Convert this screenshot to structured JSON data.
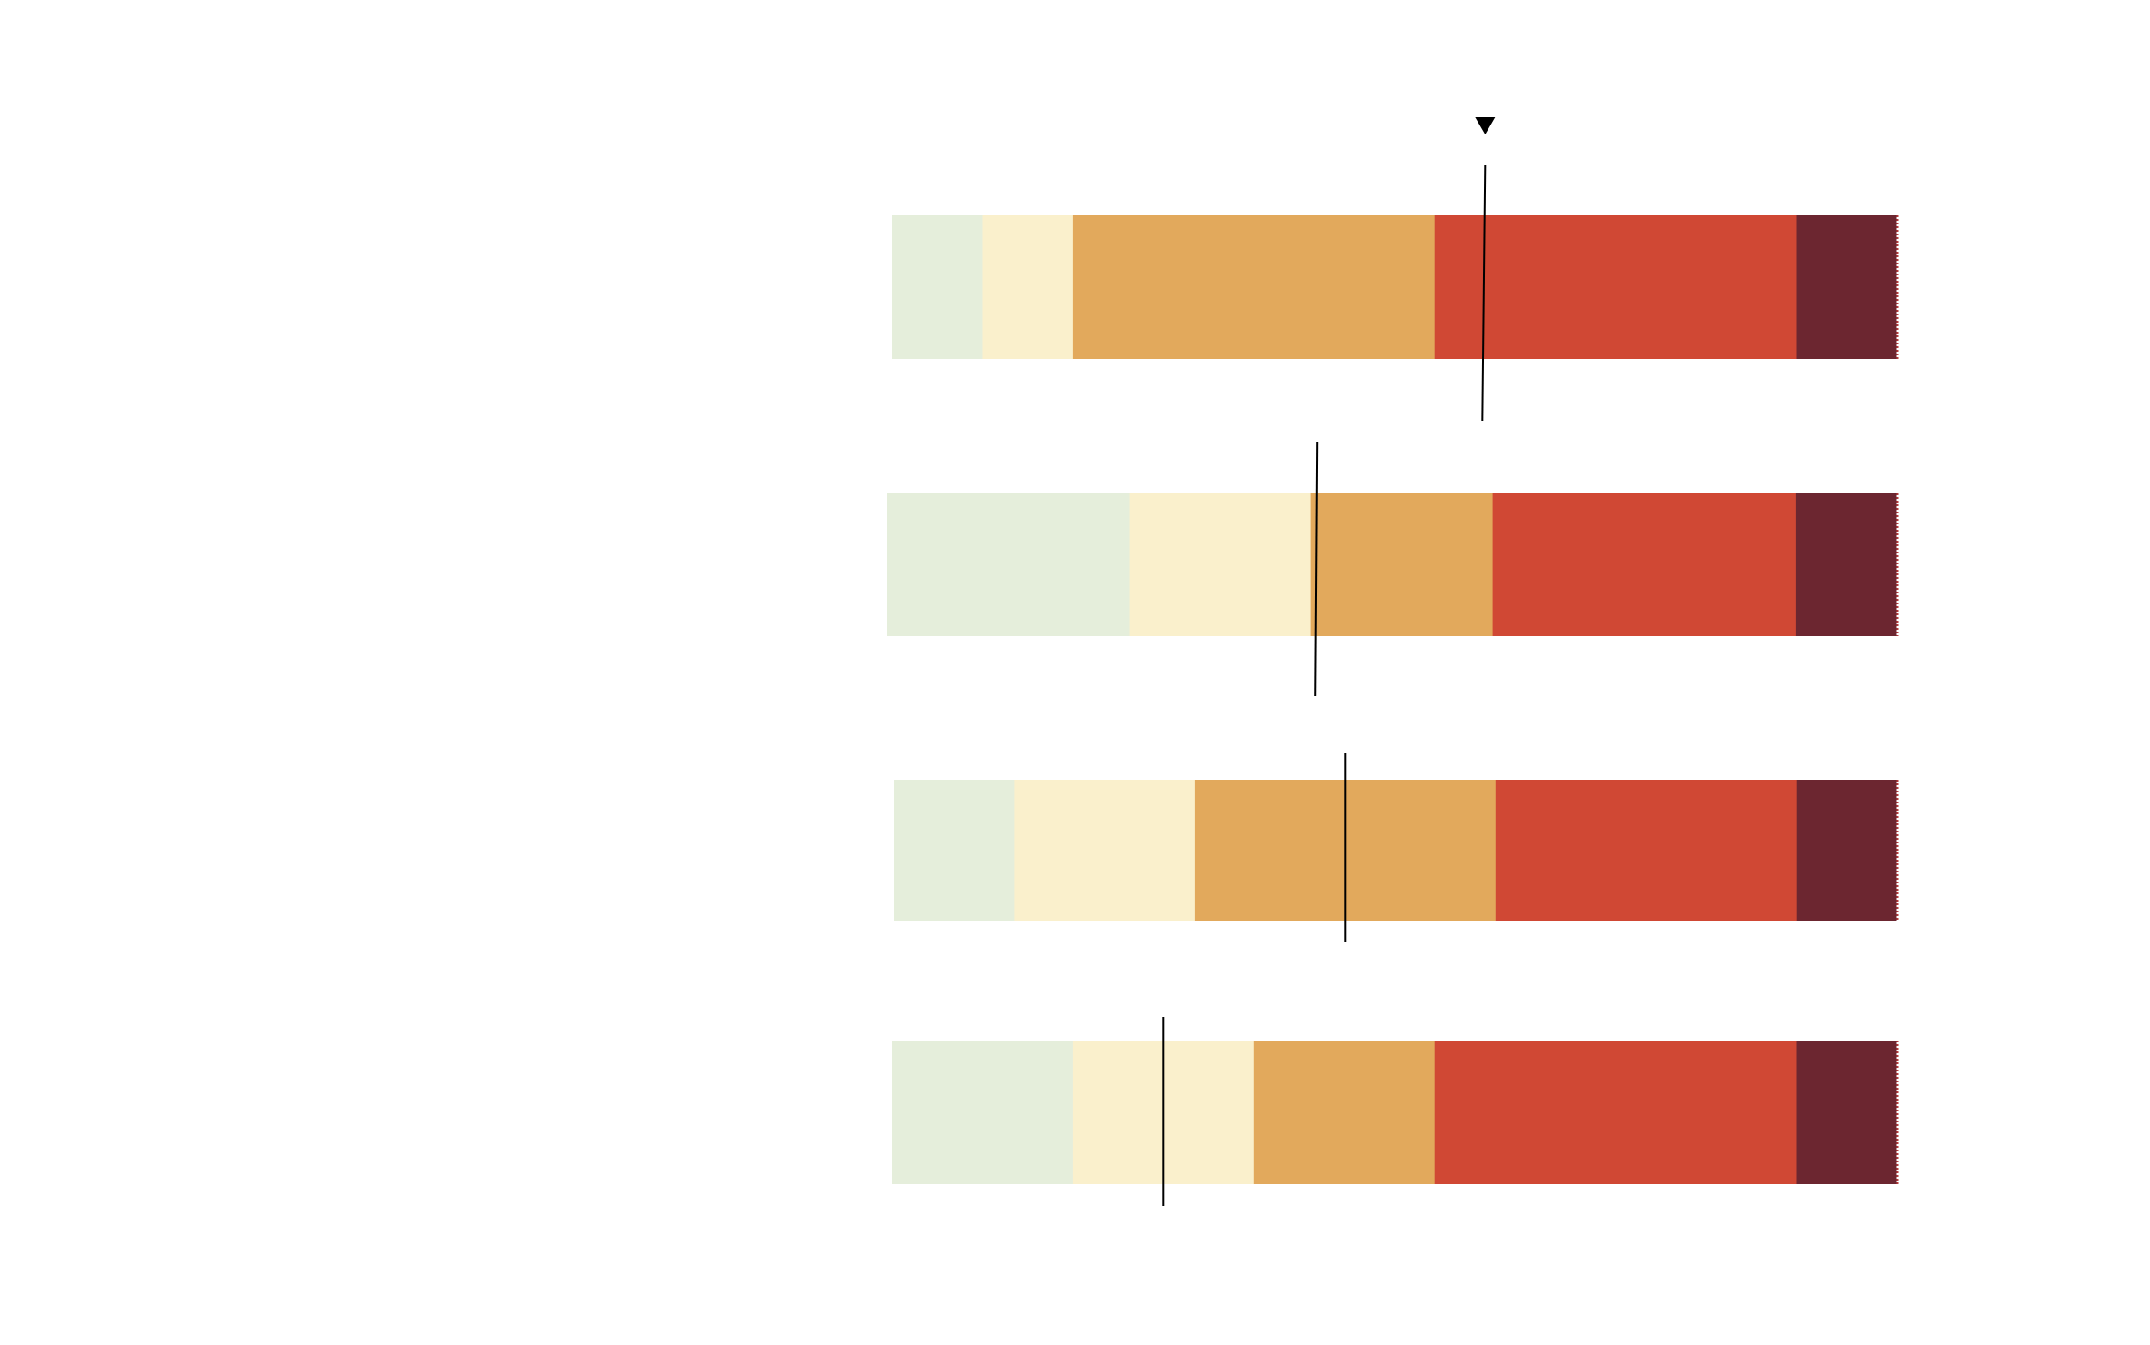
{
  "chart_data": {
    "type": "bar",
    "orientation": "horizontal",
    "stacked": true,
    "xlim": [
      0,
      100
    ],
    "categories": [
      "",
      "",
      "",
      ""
    ],
    "segment_colors": [
      "#e5eedb",
      "#faf0cc",
      "#e2a95c",
      "#d04834",
      "#6c2630"
    ],
    "rows": [
      {
        "segments": [
          9.0,
          9.0,
          36.0,
          36.0,
          10.0
        ],
        "marker": 58.9
      },
      {
        "segments": [
          24.0,
          18.0,
          18.0,
          30.0,
          10.0
        ],
        "marker": 42.5
      },
      {
        "segments": [
          12.0,
          18.0,
          30.0,
          30.0,
          10.0
        ],
        "marker": 45.0
      },
      {
        "segments": [
          18.0,
          18.0,
          18.0,
          36.0,
          10.0
        ],
        "marker": 27.0
      }
    ],
    "marker_symbol": "▼",
    "grid": false,
    "legend": "none"
  }
}
